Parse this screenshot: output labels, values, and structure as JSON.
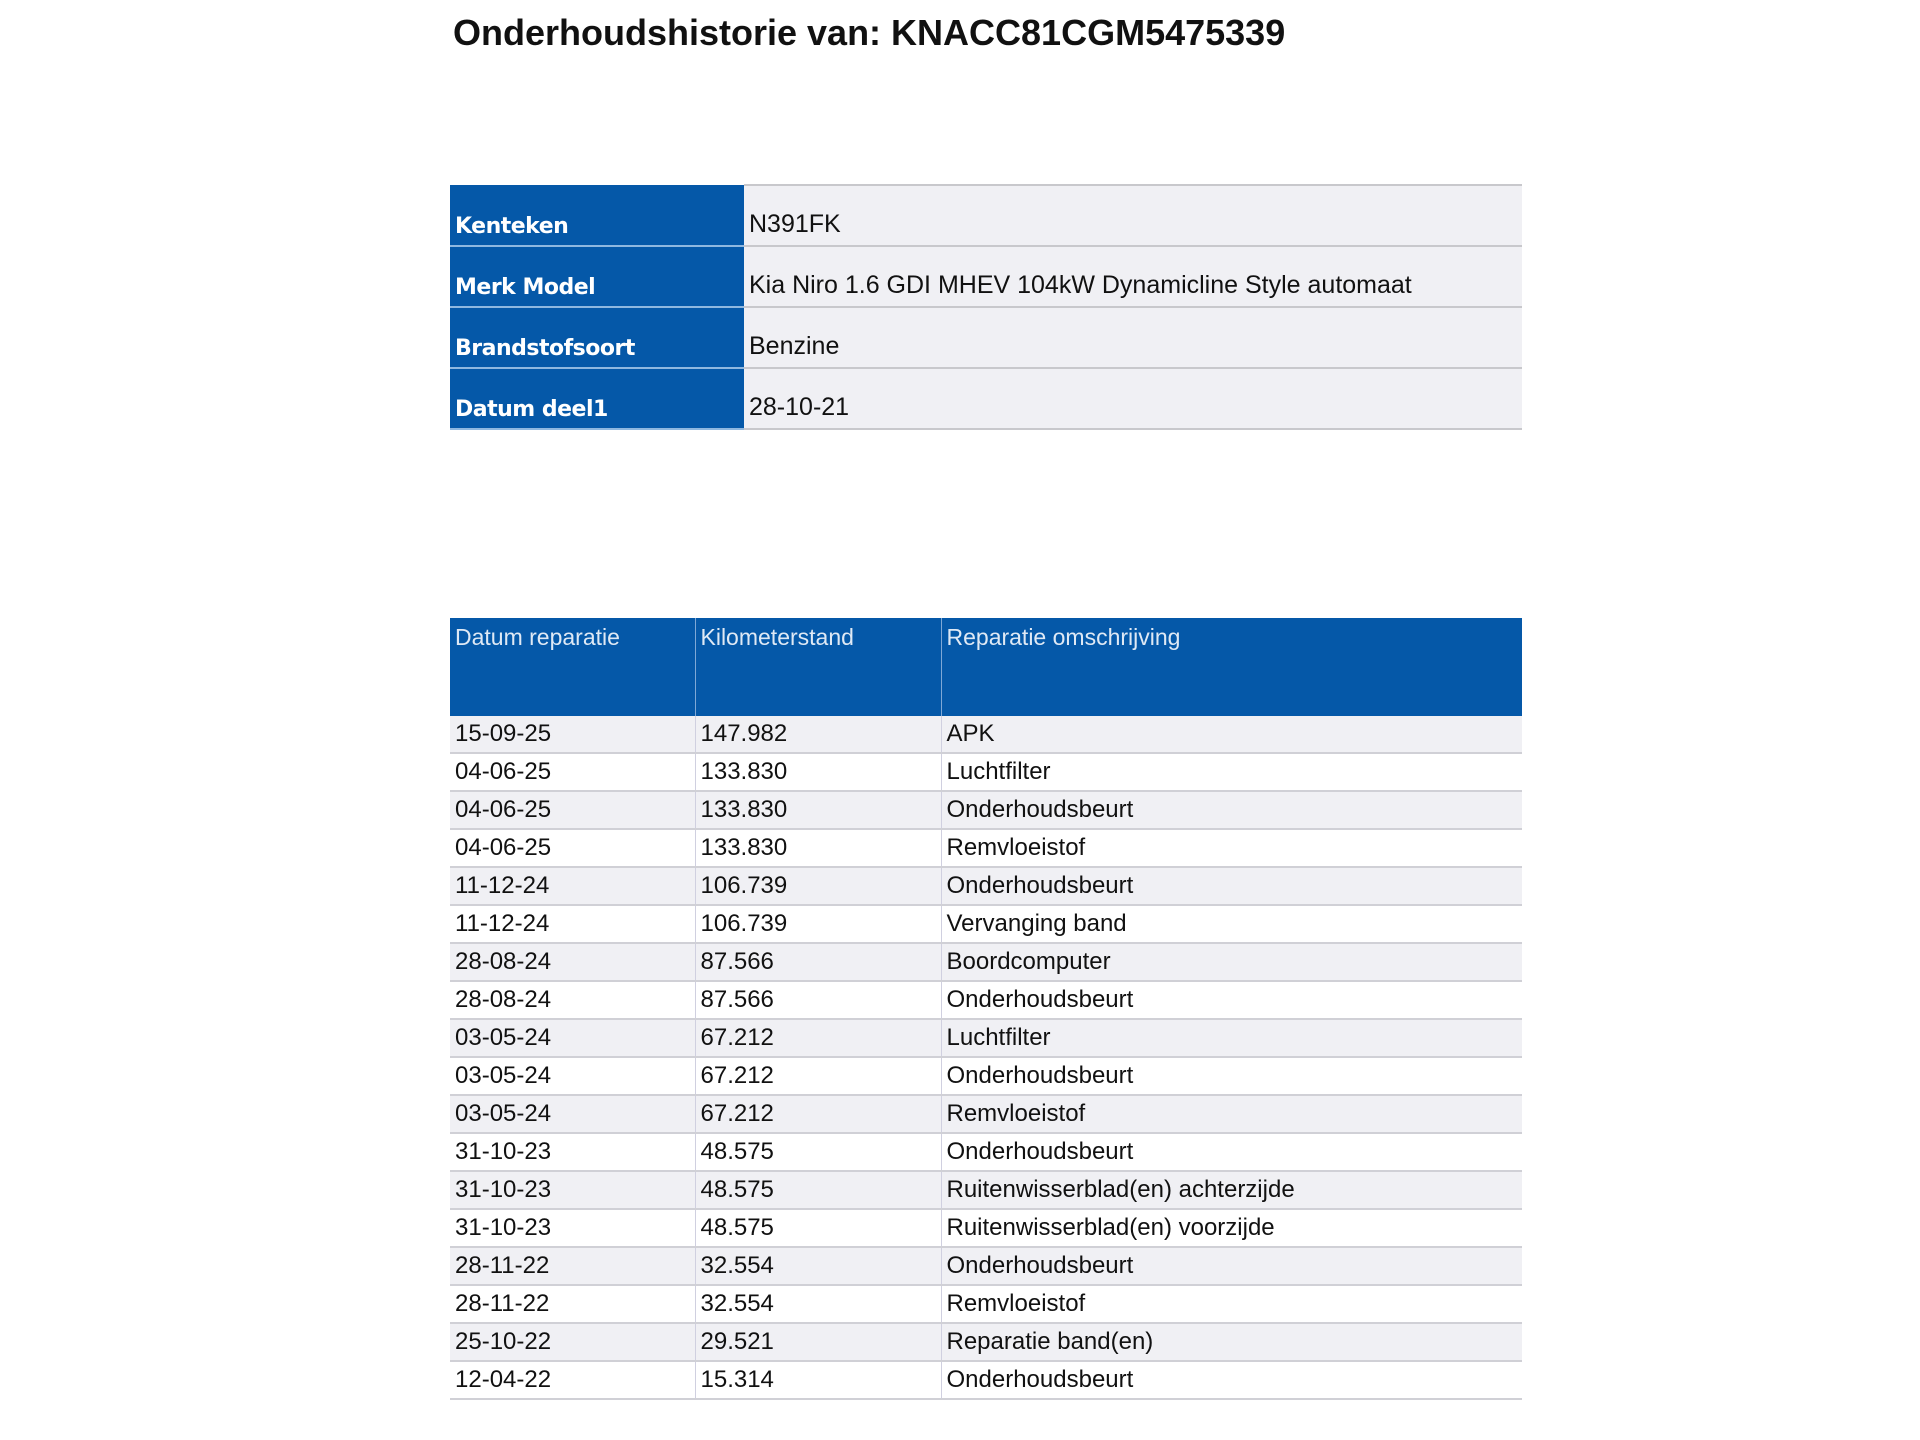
{
  "title": "Onderhoudshistorie van: KNACC81CGM5475339",
  "info": [
    {
      "label": "Kenteken",
      "value": "N391FK"
    },
    {
      "label": "Merk Model",
      "value": "Kia Niro 1.6 GDI MHEV 104kW Dynamicline Style automaat"
    },
    {
      "label": "Brandstofsoort",
      "value": "Benzine"
    },
    {
      "label": "Datum deel1",
      "value": "28-10-21"
    }
  ],
  "history": {
    "columns": [
      "Datum reparatie",
      "Kilometerstand",
      "Reparatie omschrijving"
    ],
    "rows": [
      [
        "15-09-25",
        "147.982",
        "APK"
      ],
      [
        "04-06-25",
        "133.830",
        "Luchtfilter"
      ],
      [
        "04-06-25",
        "133.830",
        "Onderhoudsbeurt"
      ],
      [
        "04-06-25",
        "133.830",
        "Remvloeistof"
      ],
      [
        "11-12-24",
        "106.739",
        "Onderhoudsbeurt"
      ],
      [
        "11-12-24",
        "106.739",
        "Vervanging band"
      ],
      [
        "28-08-24",
        "87.566",
        "Boordcomputer"
      ],
      [
        "28-08-24",
        "87.566",
        "Onderhoudsbeurt"
      ],
      [
        "03-05-24",
        "67.212",
        "Luchtfilter"
      ],
      [
        "03-05-24",
        "67.212",
        "Onderhoudsbeurt"
      ],
      [
        "03-05-24",
        "67.212",
        "Remvloeistof"
      ],
      [
        "31-10-23",
        "48.575",
        "Onderhoudsbeurt"
      ],
      [
        "31-10-23",
        "48.575",
        "Ruitenwisserblad(en) achterzijde"
      ],
      [
        "31-10-23",
        "48.575",
        "Ruitenwisserblad(en) voorzijde"
      ],
      [
        "28-11-22",
        "32.554",
        "Onderhoudsbeurt"
      ],
      [
        "28-11-22",
        "32.554",
        "Remvloeistof"
      ],
      [
        "25-10-22",
        "29.521",
        "Reparatie band(en)"
      ],
      [
        "12-04-22",
        "15.314",
        "Onderhoudsbeurt"
      ]
    ]
  },
  "colors": {
    "header_blue": "#0558a8",
    "row_gray": "#f0f0f4"
  }
}
